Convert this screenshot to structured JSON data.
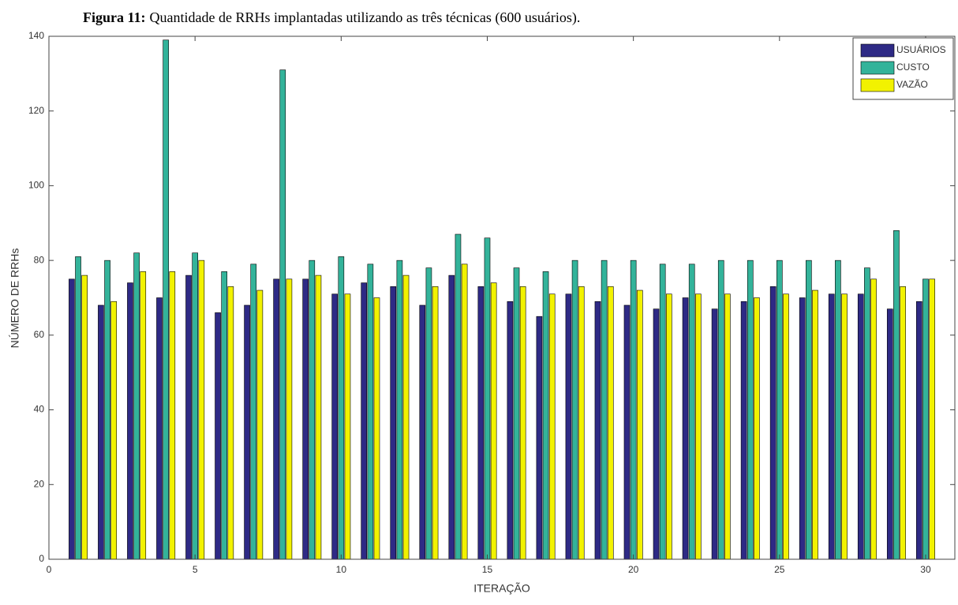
{
  "chart_data": {
    "type": "bar",
    "title_label": "Figura 11:",
    "title": "Quantidade de RRHs implantadas utilizando as três técnicas (600 usuários).",
    "xlabel": "ITERAÇÃO",
    "ylabel": "NÚMERO DE RRHs",
    "x": [
      1,
      2,
      3,
      4,
      5,
      6,
      7,
      8,
      9,
      10,
      11,
      12,
      13,
      14,
      15,
      16,
      17,
      18,
      19,
      20,
      21,
      22,
      23,
      24,
      25,
      26,
      27,
      28,
      29,
      30
    ],
    "series": [
      {
        "name": "USUÁRIOS",
        "color": "#2e2a85",
        "values": [
          75,
          68,
          74,
          70,
          76,
          66,
          68,
          75,
          75,
          71,
          74,
          73,
          68,
          76,
          73,
          69,
          65,
          71,
          69,
          68,
          67,
          70,
          67,
          69,
          73,
          70,
          71,
          71,
          67,
          69
        ]
      },
      {
        "name": "CUSTO",
        "color": "#33b39a",
        "values": [
          81,
          80,
          82,
          139,
          82,
          77,
          79,
          131,
          80,
          81,
          79,
          80,
          78,
          87,
          86,
          78,
          77,
          80,
          80,
          80,
          79,
          79,
          80,
          80,
          80,
          80,
          80,
          78,
          88,
          75
        ]
      },
      {
        "name": "VAZÃO",
        "color": "#f2f200",
        "values": [
          76,
          69,
          77,
          77,
          80,
          73,
          72,
          75,
          76,
          71,
          70,
          76,
          73,
          79,
          74,
          73,
          71,
          73,
          73,
          72,
          71,
          71,
          71,
          70,
          71,
          72,
          71,
          75,
          73,
          75
        ]
      }
    ],
    "xlim": [
      0,
      31
    ],
    "xticks": [
      0,
      5,
      10,
      15,
      20,
      25,
      30
    ],
    "ylim": [
      0,
      140
    ],
    "yticks": [
      0,
      20,
      40,
      60,
      80,
      100,
      120,
      140
    ],
    "grid": false,
    "legend": "upper right"
  }
}
